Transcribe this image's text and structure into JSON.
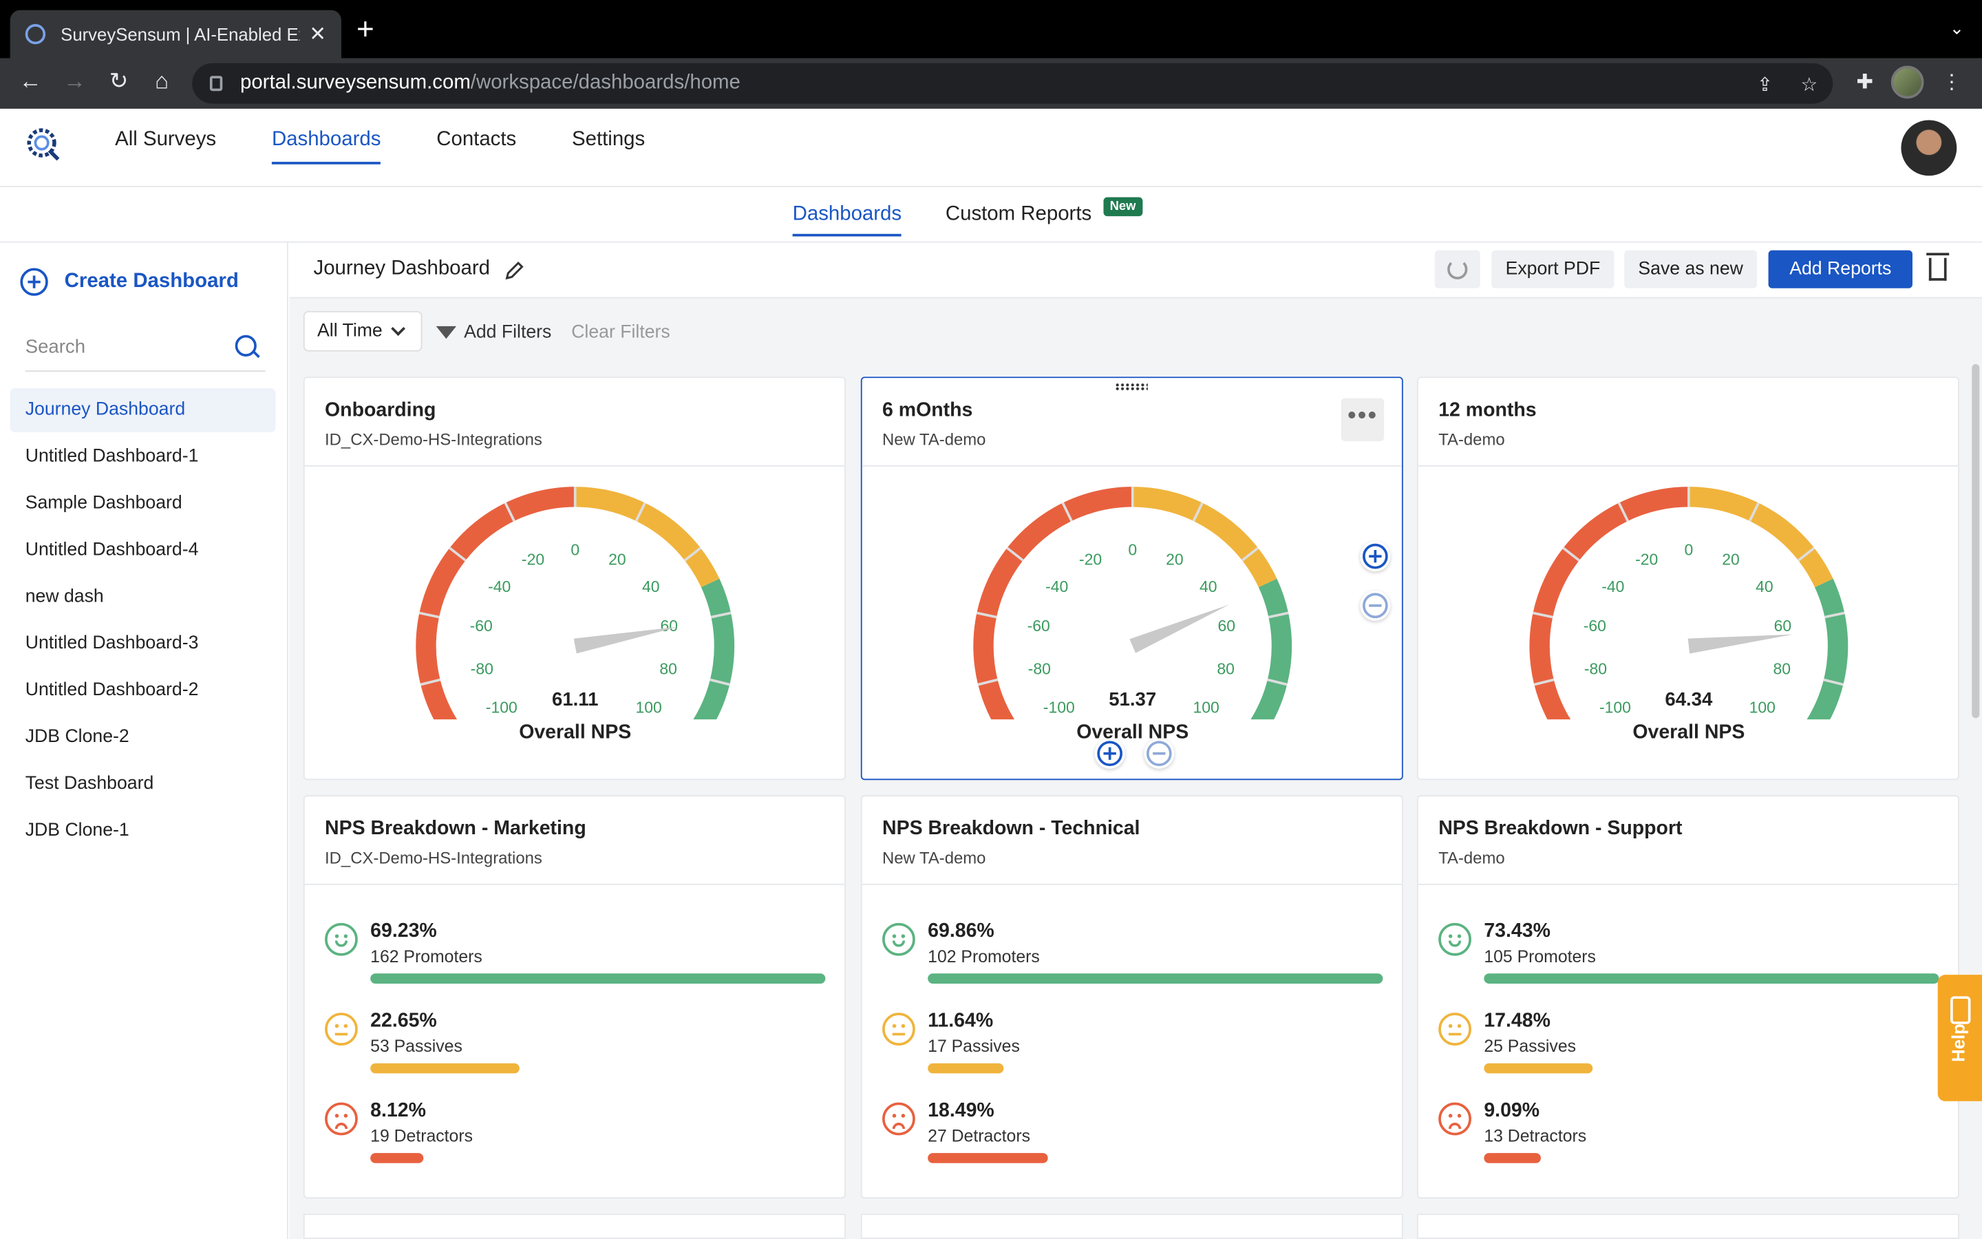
{
  "browser": {
    "tab_title": "SurveySensum | AI-Enabled Ex",
    "url_host": "portal.surveysensum.com",
    "url_path": "/workspace/dashboards/home"
  },
  "header": {
    "nav": [
      "All Surveys",
      "Dashboards",
      "Contacts",
      "Settings"
    ],
    "active_nav": "Dashboards"
  },
  "subnav": {
    "dashboards": "Dashboards",
    "custom_reports": "Custom Reports",
    "new_badge": "New"
  },
  "sidebar": {
    "create_label": "Create Dashboard",
    "search_placeholder": "Search",
    "items": [
      "Journey Dashboard",
      "Untitled Dashboard-1",
      "Sample Dashboard",
      "Untitled Dashboard-4",
      "new dash",
      "Untitled Dashboard-3",
      "Untitled Dashboard-2",
      "JDB Clone-2",
      "Test Dashboard",
      "JDB Clone-1"
    ]
  },
  "toolbar": {
    "title": "Journey Dashboard",
    "export_pdf": "Export PDF",
    "save_as_new": "Save as new",
    "add_reports": "Add Reports"
  },
  "filters": {
    "time_range": "All Time",
    "add_filters": "Add Filters",
    "clear_filters": "Clear Filters"
  },
  "gauges": [
    {
      "title": "Onboarding",
      "subtitle": "ID_CX-Demo-HS-Integrations",
      "value": "61.11",
      "score": 61.11,
      "label": "Overall NPS"
    },
    {
      "title": "6 mOnths",
      "subtitle": "New TA-demo",
      "value": "51.37",
      "score": 51.37,
      "label": "Overall NPS"
    },
    {
      "title": "12 months",
      "subtitle": "TA-demo",
      "value": "64.34",
      "score": 64.34,
      "label": "Overall NPS"
    }
  ],
  "gauge_ticks": [
    "-100",
    "-80",
    "-60",
    "-40",
    "-20",
    "0",
    "20",
    "40",
    "60",
    "80",
    "100"
  ],
  "breakdowns": [
    {
      "title": "NPS Breakdown - Marketing",
      "subtitle": "ID_CX-Demo-HS-Integrations",
      "rows": [
        {
          "pct": "69.23%",
          "count": "162 Promoters",
          "fraction": 1.0
        },
        {
          "pct": "22.65%",
          "count": "53 Passives",
          "fraction": 0.327
        },
        {
          "pct": "8.12%",
          "count": "19 Detractors",
          "fraction": 0.117
        }
      ]
    },
    {
      "title": "NPS Breakdown - Technical",
      "subtitle": "New TA-demo",
      "rows": [
        {
          "pct": "69.86%",
          "count": "102 Promoters",
          "fraction": 1.0
        },
        {
          "pct": "11.64%",
          "count": "17 Passives",
          "fraction": 0.167
        },
        {
          "pct": "18.49%",
          "count": "27 Detractors",
          "fraction": 0.265
        }
      ]
    },
    {
      "title": "NPS Breakdown - Support",
      "subtitle": "TA-demo",
      "rows": [
        {
          "pct": "73.43%",
          "count": "105 Promoters",
          "fraction": 1.0
        },
        {
          "pct": "17.48%",
          "count": "25 Passives",
          "fraction": 0.238
        },
        {
          "pct": "9.09%",
          "count": "13 Detractors",
          "fraction": 0.124
        }
      ]
    }
  ],
  "colors": {
    "accent": "#1a56c4",
    "promoter": "#5bb381",
    "passive": "#f0b43c",
    "detractor": "#e8613f"
  },
  "help": {
    "label": "Help"
  }
}
